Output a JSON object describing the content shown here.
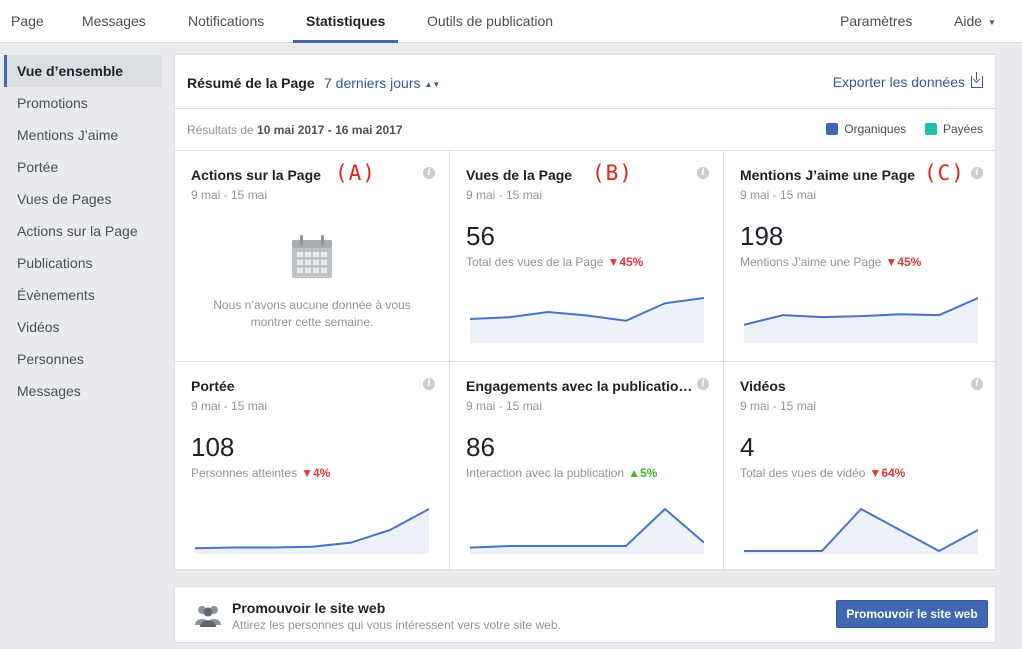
{
  "topnav": {
    "tabs": [
      {
        "label": "Page"
      },
      {
        "label": "Messages"
      },
      {
        "label": "Notifications"
      },
      {
        "label": "Statistiques",
        "active": true
      },
      {
        "label": "Outils de publication"
      }
    ],
    "settings_label": "Paramètres",
    "help_label": "Aide",
    "help_caret": "▼"
  },
  "sidebar": {
    "items": [
      {
        "label": "Vue d’ensemble",
        "active": true
      },
      {
        "label": "Promotions"
      },
      {
        "label": "Mentions J’aime"
      },
      {
        "label": "Portée"
      },
      {
        "label": "Vues de Pages"
      },
      {
        "label": "Actions sur la Page"
      },
      {
        "label": "Publications"
      },
      {
        "label": "Évènements"
      },
      {
        "label": "Vidéos"
      },
      {
        "label": "Personnes"
      },
      {
        "label": "Messages"
      }
    ]
  },
  "summary": {
    "title": "Résumé de la Page",
    "range_label": "7 derniers jours",
    "range_icon": "sort-arrows-icon",
    "export_label": "Exporter les données",
    "export_icon": "export-icon",
    "results_prefix": "Résultats de",
    "results_range": "10 mai 2017 - 16 mai 2017",
    "legend": [
      {
        "label": "Organiques",
        "color": "#4267b2"
      },
      {
        "label": "Payées",
        "color": "#20bfa9"
      }
    ]
  },
  "cards": [
    {
      "title": "Actions sur la Page",
      "marker": "(A)",
      "period": "9 mai - 15 mai",
      "empty_text_line1": "Nous n’avons aucune donnée à vous",
      "empty_text_line2": "montrer cette semaine.",
      "empty_icon": "calendar-icon"
    },
    {
      "title": "Vues de la Page",
      "marker": "(B)",
      "period": "9 mai - 15 mai",
      "value": "56",
      "sub_label": "Total des vues de la Page",
      "change": "45%",
      "change_dir": "down",
      "spark": [
        12,
        13,
        16,
        14,
        11,
        21,
        24
      ]
    },
    {
      "title": "Mentions J’aime une Page",
      "marker": "(C)",
      "period": "9 mai - 15 mai",
      "value": "198",
      "sub_label": "Mentions J’aime une Page",
      "change": "45%",
      "change_dir": "down",
      "spark": [
        8,
        13,
        12,
        12.5,
        13.5,
        13,
        22
      ]
    },
    {
      "title": "Portée",
      "period": "9 mai - 15 mai",
      "value": "108",
      "sub_label": "Personnes atteintes",
      "change": "4%",
      "change_dir": "down",
      "spark": [
        2,
        2.5,
        2.5,
        3,
        6,
        15,
        30
      ]
    },
    {
      "title": "Engagements avec la publicatio…",
      "period": "9 mai - 15 mai",
      "value": "86",
      "sub_label": "Interaction avec la publication",
      "change": "5%",
      "change_dir": "up",
      "spark": [
        2,
        3,
        3,
        3,
        3,
        25,
        5
      ]
    },
    {
      "title": "Vidéos",
      "period": "9 mai - 15 mai",
      "value": "4",
      "sub_label": "Total des vues de vidéo",
      "change": "64%",
      "change_dir": "down",
      "spark": [
        0,
        0,
        0,
        4,
        2,
        0,
        2
      ]
    }
  ],
  "promo": {
    "title": "Promouvoir le site web",
    "description": "Attirez les personnes qui vous intéressent vers votre site web.",
    "button_label": "Promouvoir le site web",
    "icon": "people-icon"
  },
  "colors": {
    "accent": "#4267b2",
    "link": "#365899",
    "spark_line": "#4a72c8",
    "spark_fill": "#edf1fa",
    "marker": "#e0251b"
  }
}
